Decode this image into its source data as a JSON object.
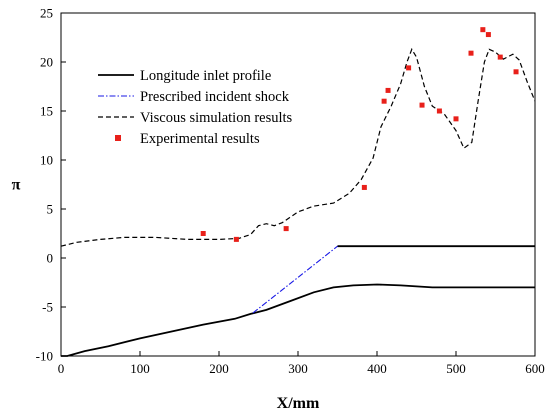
{
  "chart_data": {
    "type": "line",
    "xlabel": "X/mm",
    "ylabel": "π",
    "xlim": [
      0,
      600
    ],
    "ylim": [
      -10,
      25
    ],
    "xticks": [
      0,
      100,
      200,
      300,
      400,
      500,
      600
    ],
    "yticks": [
      -10,
      -5,
      0,
      5,
      10,
      15,
      20,
      25
    ],
    "grid": false,
    "legend_position": "top-left",
    "series": [
      {
        "name": "Longitude inlet profile",
        "style": "solid",
        "color": "#000000",
        "segments": [
          [
            [
              0,
              -10
            ],
            [
              8,
              -10
            ],
            [
              30,
              -9.5
            ],
            [
              60,
              -9.0
            ],
            [
              100,
              -8.2
            ],
            [
              140,
              -7.5
            ],
            [
              180,
              -6.8
            ],
            [
              220,
              -6.2
            ],
            [
              240,
              -5.7
            ],
            [
              260,
              -5.3
            ],
            [
              290,
              -4.4
            ],
            [
              320,
              -3.5
            ],
            [
              345,
              -3.0
            ],
            [
              370,
              -2.8
            ],
            [
              400,
              -2.7
            ],
            [
              430,
              -2.8
            ],
            [
              470,
              -3.0
            ],
            [
              520,
              -3.0
            ],
            [
              600,
              -3.0
            ]
          ],
          [
            [
              350,
              1.2
            ],
            [
              600,
              1.2
            ]
          ]
        ]
      },
      {
        "name": "Prescribed incident shock",
        "style": "dashdot",
        "color": "#1a1ae6",
        "points": [
          [
            243,
            -5.6
          ],
          [
            350,
            1.2
          ]
        ]
      },
      {
        "name": "Viscous simulation results",
        "style": "dashed",
        "color": "#000000",
        "points": [
          [
            0,
            1.2
          ],
          [
            20,
            1.6
          ],
          [
            50,
            1.9
          ],
          [
            80,
            2.1
          ],
          [
            120,
            2.1
          ],
          [
            160,
            1.9
          ],
          [
            200,
            1.9
          ],
          [
            225,
            2.0
          ],
          [
            240,
            2.4
          ],
          [
            250,
            3.3
          ],
          [
            260,
            3.5
          ],
          [
            270,
            3.3
          ],
          [
            280,
            3.6
          ],
          [
            300,
            4.7
          ],
          [
            320,
            5.3
          ],
          [
            345,
            5.6
          ],
          [
            365,
            6.6
          ],
          [
            380,
            8.0
          ],
          [
            395,
            10.2
          ],
          [
            405,
            13.4
          ],
          [
            418,
            15.5
          ],
          [
            430,
            17.8
          ],
          [
            438,
            20.0
          ],
          [
            444,
            21.3
          ],
          [
            450,
            20.5
          ],
          [
            460,
            17.5
          ],
          [
            470,
            15.5
          ],
          [
            485,
            14.7
          ],
          [
            500,
            13.0
          ],
          [
            510,
            11.2
          ],
          [
            520,
            11.8
          ],
          [
            528,
            16.0
          ],
          [
            536,
            20.0
          ],
          [
            542,
            21.3
          ],
          [
            550,
            21.0
          ],
          [
            560,
            20.3
          ],
          [
            572,
            20.8
          ],
          [
            580,
            20.2
          ],
          [
            590,
            18.0
          ],
          [
            600,
            16.0
          ]
        ]
      },
      {
        "name": "Experimental results",
        "style": "markers",
        "color": "#e8201a",
        "points": [
          [
            180,
            2.5
          ],
          [
            222,
            1.9
          ],
          [
            285,
            3.0
          ],
          [
            384,
            7.2
          ],
          [
            409,
            16.0
          ],
          [
            414,
            17.1
          ],
          [
            440,
            19.4
          ],
          [
            457,
            15.6
          ],
          [
            479,
            15.0
          ],
          [
            500,
            14.2
          ],
          [
            519,
            20.9
          ],
          [
            534,
            23.3
          ],
          [
            541,
            22.8
          ],
          [
            556,
            20.5
          ],
          [
            576,
            19.0
          ]
        ]
      }
    ]
  }
}
